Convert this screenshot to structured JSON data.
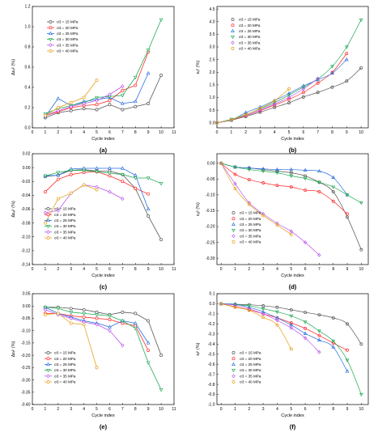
{
  "legend_labels": [
    "σ<sub>3</sub> = 15 MPa",
    "σ<sub>3</sub> = 20 MPa",
    "σ<sub>3</sub> = 25 MPa",
    "σ<sub>3</sub> = 30 MPa",
    "σ<sub>3</sub> = 35 MPa",
    "σ<sub>3</sub> = 40 MPa"
  ],
  "legend_display": [
    "σ3 = 15 MPa",
    "σ3 = 20 MPa",
    "σ3 = 25 MPa",
    "σ3 = 30 MPa",
    "σ3 = 35 MPa",
    "σ3 = 40 MPa"
  ],
  "series_colors": [
    "#555555",
    "#ff2a2a",
    "#2a6fe0",
    "#22aa55",
    "#bb55ee",
    "#e6a21c"
  ],
  "chart_data": [
    {
      "panel": "(a)",
      "type": "line",
      "xlabel": "Cycle index",
      "ylabel": "Δεᵥᵖ (%)",
      "xlim": [
        0,
        11
      ],
      "ylim": [
        0,
        1.2
      ],
      "xticks": [
        0,
        1,
        2,
        3,
        4,
        5,
        6,
        7,
        8,
        9,
        10,
        11
      ],
      "yticks": [
        0.0,
        0.2,
        0.4,
        0.6,
        0.8,
        1.0,
        1.2
      ],
      "ytick_labels": [
        "0.0",
        "0.2",
        "0.4",
        "0.6",
        "0.8",
        "1.0",
        "1.2"
      ],
      "legend_pos": "top-left",
      "series": [
        {
          "x": [
            1,
            2,
            3,
            4,
            5,
            6,
            7,
            8,
            9,
            10
          ],
          "y": [
            0.1,
            0.15,
            0.17,
            0.19,
            0.18,
            0.23,
            0.18,
            0.21,
            0.24,
            0.52
          ]
        },
        {
          "x": [
            1,
            2,
            3,
            4,
            5,
            6,
            7,
            8,
            9
          ],
          "y": [
            0.12,
            0.16,
            0.2,
            0.22,
            0.23,
            0.27,
            0.37,
            0.42,
            0.75
          ]
        },
        {
          "x": [
            1,
            2,
            3,
            4,
            5,
            6,
            7,
            8,
            9
          ],
          "y": [
            0.11,
            0.29,
            0.22,
            0.26,
            0.28,
            0.3,
            0.24,
            0.26,
            0.54
          ]
        },
        {
          "x": [
            1,
            2,
            3,
            4,
            5,
            6,
            7,
            8,
            9,
            10
          ],
          "y": [
            0.14,
            0.19,
            0.22,
            0.25,
            0.3,
            0.31,
            0.32,
            0.5,
            0.77,
            1.07
          ]
        },
        {
          "x": [
            1,
            2,
            3,
            4,
            5,
            6,
            7
          ],
          "y": [
            0.12,
            0.17,
            0.21,
            0.24,
            0.27,
            0.33,
            0.41
          ]
        },
        {
          "x": [
            1,
            2,
            3,
            4,
            5
          ],
          "y": [
            0.12,
            0.2,
            0.25,
            0.3,
            0.47
          ]
        }
      ]
    },
    {
      "panel": "(b)",
      "type": "scatter",
      "xlabel": "Cycle index",
      "ylabel": "εᵥᵖ (%)",
      "xlim": [
        0,
        10.5
      ],
      "ylim": [
        -0.2,
        4.6
      ],
      "xticks": [
        0,
        1,
        2,
        3,
        4,
        5,
        6,
        7,
        8,
        9,
        10
      ],
      "yticks": [
        0.0,
        0.5,
        1.0,
        1.5,
        2.0,
        2.5,
        3.0,
        3.5,
        4.0,
        4.5
      ],
      "ytick_labels": [
        "0.0",
        "0.5",
        "1.0",
        "1.5",
        "2.0",
        "2.5",
        "3.0",
        "3.5",
        "4.0",
        "4.5"
      ],
      "legend_pos": "top-left",
      "fit_curve": true,
      "series": [
        {
          "x": [
            0,
            1,
            2,
            3,
            4,
            5,
            6,
            7,
            8,
            9,
            10
          ],
          "y": [
            0,
            0.1,
            0.25,
            0.42,
            0.61,
            0.79,
            1.02,
            1.2,
            1.41,
            1.65,
            2.17
          ]
        },
        {
          "x": [
            0,
            1,
            2,
            3,
            4,
            5,
            6,
            7,
            8,
            9
          ],
          "y": [
            0,
            0.12,
            0.28,
            0.48,
            0.7,
            0.93,
            1.2,
            1.57,
            1.99,
            2.74
          ]
        },
        {
          "x": [
            0,
            1,
            2,
            3,
            4,
            5,
            6,
            7,
            8,
            9
          ],
          "y": [
            0,
            0.11,
            0.4,
            0.62,
            0.88,
            1.16,
            1.46,
            1.7,
            1.96,
            2.5
          ]
        },
        {
          "x": [
            0,
            1,
            2,
            3,
            4,
            5,
            6,
            7,
            8,
            9,
            10
          ],
          "y": [
            0,
            0.14,
            0.33,
            0.55,
            0.8,
            1.1,
            1.41,
            1.73,
            2.23,
            3.0,
            4.07
          ]
        },
        {
          "x": [
            0,
            1,
            2,
            3,
            4,
            5,
            6,
            7
          ],
          "y": [
            0,
            0.12,
            0.29,
            0.5,
            0.74,
            1.01,
            1.34,
            1.75
          ]
        },
        {
          "x": [
            0,
            1,
            2,
            3,
            4,
            5
          ],
          "y": [
            0,
            0.12,
            0.32,
            0.57,
            0.87,
            1.34
          ]
        }
      ]
    },
    {
      "panel": "(c)",
      "type": "line",
      "xlabel": "Cycle index",
      "ylabel": "Δεₐᵖ (%)",
      "xlim": [
        0,
        11
      ],
      "ylim": [
        -0.14,
        0.02
      ],
      "xticks": [
        0,
        1,
        2,
        3,
        4,
        5,
        6,
        7,
        8,
        9,
        10,
        11
      ],
      "yticks": [
        -0.14,
        -0.12,
        -0.1,
        -0.08,
        -0.06,
        -0.04,
        -0.02,
        0.0,
        0.02
      ],
      "ytick_labels": [
        "-0.14",
        "-0.12",
        "-0.10",
        "-0.08",
        "-0.06",
        "-0.04",
        "-0.02",
        "0.00",
        "0.02"
      ],
      "legend_pos": "bottom-left",
      "series": [
        {
          "x": [
            1,
            2,
            3,
            4,
            5,
            6,
            7,
            8,
            9,
            10
          ],
          "y": [
            -0.013,
            -0.011,
            -0.004,
            -0.003,
            -0.005,
            -0.005,
            -0.01,
            -0.03,
            -0.07,
            -0.104
          ]
        },
        {
          "x": [
            1,
            2,
            3,
            4,
            5,
            6,
            7,
            8,
            9
          ],
          "y": [
            -0.035,
            -0.017,
            -0.01,
            -0.007,
            -0.006,
            -0.012,
            -0.02,
            -0.03,
            -0.038
          ]
        },
        {
          "x": [
            1,
            2,
            3,
            4,
            5,
            6,
            7,
            8,
            9
          ],
          "y": [
            -0.012,
            -0.011,
            -0.002,
            -0.001,
            -0.001,
            -0.001,
            -0.001,
            -0.011,
            -0.06
          ]
        },
        {
          "x": [
            1,
            2,
            3,
            4,
            5,
            6,
            7,
            8,
            9,
            10
          ],
          "y": [
            -0.012,
            -0.007,
            -0.004,
            -0.004,
            -0.006,
            -0.008,
            -0.01,
            -0.015,
            -0.015,
            -0.023
          ]
        },
        {
          "x": [
            1,
            2,
            3,
            4,
            5,
            6,
            7
          ],
          "y": [
            -0.065,
            -0.062,
            -0.037,
            -0.025,
            -0.028,
            -0.035,
            -0.045
          ]
        },
        {
          "x": [
            1,
            2,
            3,
            4,
            5
          ],
          "y": [
            -0.08,
            -0.045,
            -0.037,
            -0.025,
            -0.032
          ]
        }
      ]
    },
    {
      "panel": "(d)",
      "type": "scatter",
      "xlabel": "Cycle index",
      "ylabel": "εₐᵖ (%)",
      "xlim": [
        -0.3,
        10.5
      ],
      "ylim": [
        -0.32,
        0.03
      ],
      "xticks": [
        0,
        1,
        2,
        3,
        4,
        5,
        6,
        7,
        8,
        9,
        10
      ],
      "yticks": [
        -0.3,
        -0.25,
        -0.2,
        -0.15,
        -0.1,
        -0.05,
        0.0
      ],
      "ytick_labels": [
        "-0.30",
        "-0.25",
        "-0.20",
        "-0.15",
        "-0.10",
        "-0.05",
        "0.00"
      ],
      "legend_pos": "bottom-left",
      "fit_curve": true,
      "series": [
        {
          "x": [
            0,
            1,
            2,
            3,
            4,
            5,
            6,
            7,
            8,
            9,
            10
          ],
          "y": [
            0,
            -0.012,
            -0.015,
            -0.02,
            -0.025,
            -0.03,
            -0.04,
            -0.06,
            -0.09,
            -0.17,
            -0.273
          ]
        },
        {
          "x": [
            0,
            1,
            2,
            3,
            4,
            5,
            6,
            7,
            8,
            9
          ],
          "y": [
            0,
            -0.035,
            -0.052,
            -0.062,
            -0.07,
            -0.075,
            -0.085,
            -0.09,
            -0.12,
            -0.16
          ]
        },
        {
          "x": [
            0,
            1,
            2,
            3,
            4,
            5,
            6,
            7,
            8,
            9
          ],
          "y": [
            0,
            -0.012,
            -0.015,
            -0.018,
            -0.02,
            -0.02,
            -0.022,
            -0.025,
            -0.045,
            -0.1
          ]
        },
        {
          "x": [
            0,
            1,
            2,
            3,
            4,
            5,
            6,
            7,
            8,
            9,
            10
          ],
          "y": [
            0,
            -0.012,
            -0.02,
            -0.025,
            -0.03,
            -0.04,
            -0.048,
            -0.06,
            -0.075,
            -0.1,
            -0.125
          ]
        },
        {
          "x": [
            0,
            1,
            2,
            3,
            4,
            5,
            6,
            7
          ],
          "y": [
            0,
            -0.065,
            -0.125,
            -0.16,
            -0.19,
            -0.215,
            -0.25,
            -0.29
          ]
        },
        {
          "x": [
            0,
            1,
            2,
            3,
            4,
            5
          ],
          "y": [
            0,
            -0.08,
            -0.13,
            -0.165,
            -0.195,
            -0.225
          ]
        }
      ]
    },
    {
      "panel": "(e)",
      "type": "line",
      "xlabel": "Cycle index",
      "ylabel": "Δεᵣᵖ (%)",
      "xlim": [
        0,
        11
      ],
      "ylim": [
        -0.4,
        0.05
      ],
      "xticks": [
        0,
        1,
        2,
        3,
        4,
        5,
        6,
        7,
        8,
        9,
        10,
        11
      ],
      "yticks": [
        -0.4,
        -0.35,
        -0.3,
        -0.25,
        -0.2,
        -0.15,
        -0.1,
        -0.05,
        0.0,
        0.05
      ],
      "ytick_labels": [
        "-0.40",
        "-0.35",
        "-0.30",
        "-0.25",
        "-0.20",
        "-0.15",
        "-0.10",
        "-0.05",
        "0.00",
        "0.05"
      ],
      "legend_pos": "bottom-left",
      "series": [
        {
          "x": [
            1,
            2,
            3,
            4,
            5,
            6,
            7,
            8,
            9,
            10
          ],
          "y": [
            -0.005,
            -0.005,
            -0.01,
            -0.015,
            -0.025,
            -0.035,
            -0.025,
            -0.03,
            -0.06,
            -0.2
          ]
        },
        {
          "x": [
            1,
            2,
            3,
            4,
            5,
            6,
            7,
            8,
            9
          ],
          "y": [
            -0.03,
            -0.03,
            -0.04,
            -0.045,
            -0.05,
            -0.055,
            -0.07,
            -0.08,
            -0.18
          ]
        },
        {
          "x": [
            1,
            2,
            3,
            4,
            5,
            6,
            7,
            8,
            9
          ],
          "y": [
            -0.005,
            -0.03,
            -0.045,
            -0.06,
            -0.07,
            -0.085,
            -0.06,
            -0.07,
            -0.15
          ]
        },
        {
          "x": [
            1,
            2,
            3,
            4,
            5,
            6,
            7,
            8,
            9,
            10
          ],
          "y": [
            -0.005,
            -0.01,
            -0.025,
            -0.03,
            -0.035,
            -0.04,
            -0.06,
            -0.09,
            -0.23,
            -0.34
          ]
        },
        {
          "x": [
            1,
            2,
            3,
            4,
            5,
            6,
            7
          ],
          "y": [
            -0.015,
            -0.035,
            -0.05,
            -0.065,
            -0.075,
            -0.1,
            -0.16
          ]
        },
        {
          "x": [
            1,
            2,
            3,
            4,
            5
          ],
          "y": [
            -0.035,
            -0.03,
            -0.07,
            -0.075,
            -0.25
          ]
        }
      ]
    },
    {
      "panel": "(f)",
      "type": "scatter",
      "xlabel": "Cycle index",
      "ylabel": "εᵣᵖ (%)",
      "xlim": [
        -0.3,
        10.5
      ],
      "ylim": [
        -1.0,
        0.1
      ],
      "xticks": [
        0,
        1,
        2,
        3,
        4,
        5,
        6,
        7,
        8,
        9,
        10
      ],
      "yticks": [
        -1.0,
        -0.9,
        -0.8,
        -0.7,
        -0.6,
        -0.5,
        -0.4,
        -0.3,
        -0.2,
        -0.1,
        0.0,
        0.1
      ],
      "ytick_labels": [
        "-1.0",
        "-0.9",
        "-0.8",
        "-0.7",
        "-0.6",
        "-0.5",
        "-0.4",
        "-0.3",
        "-0.2",
        "-0.1",
        "0.0",
        "0.1"
      ],
      "legend_pos": "bottom-left",
      "fit_curve": true,
      "series": [
        {
          "x": [
            0,
            1,
            2,
            3,
            4,
            5,
            6,
            7,
            8,
            9,
            10
          ],
          "y": [
            0,
            -0.005,
            -0.01,
            -0.02,
            -0.035,
            -0.06,
            -0.085,
            -0.11,
            -0.14,
            -0.2,
            -0.4
          ]
        },
        {
          "x": [
            0,
            1,
            2,
            3,
            4,
            5,
            6,
            7,
            8,
            9
          ],
          "y": [
            0,
            -0.03,
            -0.06,
            -0.1,
            -0.14,
            -0.19,
            -0.245,
            -0.315,
            -0.39,
            -0.46
          ]
        },
        {
          "x": [
            0,
            1,
            2,
            3,
            4,
            5,
            6,
            7,
            8,
            9
          ],
          "y": [
            0,
            -0.005,
            -0.035,
            -0.08,
            -0.14,
            -0.21,
            -0.295,
            -0.36,
            -0.43,
            -0.67
          ]
        },
        {
          "x": [
            0,
            1,
            2,
            3,
            4,
            5,
            6,
            7,
            8,
            9,
            10
          ],
          "y": [
            0,
            -0.01,
            -0.02,
            -0.05,
            -0.08,
            -0.12,
            -0.18,
            -0.27,
            -0.37,
            -0.56,
            -0.9
          ]
        },
        {
          "x": [
            0,
            1,
            2,
            3,
            4,
            5,
            6,
            7
          ],
          "y": [
            0,
            -0.015,
            -0.05,
            -0.1,
            -0.165,
            -0.24,
            -0.34,
            -0.48
          ]
        },
        {
          "x": [
            0,
            1,
            2,
            3,
            4,
            5
          ],
          "y": [
            0,
            -0.035,
            -0.065,
            -0.135,
            -0.21,
            -0.45
          ]
        }
      ]
    }
  ]
}
